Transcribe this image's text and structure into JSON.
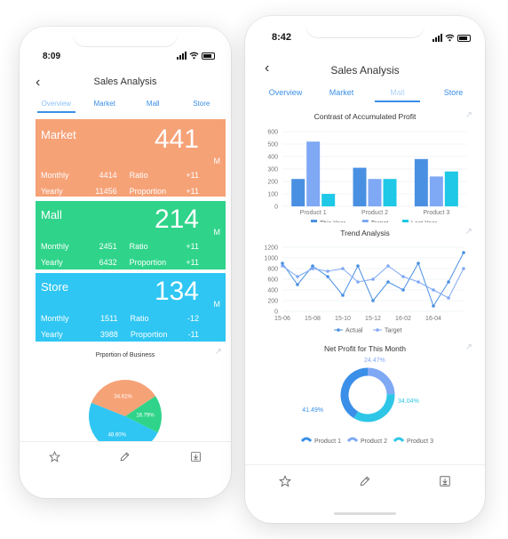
{
  "left": {
    "status": {
      "time": "8:09"
    },
    "title": "Sales Analysis",
    "tabs": [
      "Overview",
      "Market",
      "Mall",
      "Store"
    ],
    "active_tab": 0,
    "cards": [
      {
        "name": "Market",
        "value": "441",
        "unit": "M",
        "color": "#f6a277",
        "rows": [
          {
            "k1": "Monthly",
            "v1": "4414",
            "k2": "Ratio",
            "v2": "+11"
          },
          {
            "k1": "Yearly",
            "v1": "11456",
            "k2": "Proportion",
            "v2": "+11"
          }
        ]
      },
      {
        "name": "Mall",
        "value": "214",
        "unit": "M",
        "color": "#2fd48a",
        "rows": [
          {
            "k1": "Monthly",
            "v1": "2451",
            "k2": "Ratio",
            "v2": "+11"
          },
          {
            "k1": "Yearly",
            "v1": "6432",
            "k2": "Proportion",
            "v2": "+11"
          }
        ]
      },
      {
        "name": "Store",
        "value": "134",
        "unit": "M",
        "color": "#2fc6f3",
        "rows": [
          {
            "k1": "Monthly",
            "v1": "1511",
            "k2": "Ratio",
            "v2": "-12"
          },
          {
            "k1": "Yearly",
            "v1": "3988",
            "k2": "Proportion",
            "v2": "-11"
          }
        ]
      }
    ],
    "pie_title": "Prportion of Business"
  },
  "right": {
    "status": {
      "time": "8:42"
    },
    "title": "Sales Analysis",
    "tabs": [
      "Overview",
      "Market",
      "Mall",
      "Store"
    ],
    "active_tab": 2,
    "chart_titles": {
      "bar": "Contrast of Accumulated Profit",
      "line": "Trend Analysis",
      "donut": "Net Profit for This Month"
    }
  },
  "icons": [
    "back-chevron-icon",
    "expand-icon",
    "star-icon",
    "pen-icon",
    "download-icon",
    "signal-icon",
    "wifi-icon",
    "battery-icon"
  ],
  "chart_data": [
    {
      "type": "bar",
      "title": "Contrast of Accumulated Profit",
      "categories": [
        "Product 1",
        "Product 2",
        "Product 3"
      ],
      "series": [
        {
          "name": "This Year",
          "values": [
            220,
            310,
            380
          ],
          "color": "#4a90e2"
        },
        {
          "name": "Target",
          "values": [
            520,
            220,
            240
          ],
          "color": "#7fa8f5"
        },
        {
          "name": "Last Year",
          "values": [
            100,
            220,
            280
          ],
          "color": "#1ec8e6"
        }
      ],
      "ylim": [
        0,
        600
      ],
      "yticks": [
        0,
        100,
        200,
        300,
        400,
        500,
        600
      ],
      "grid": true,
      "legend": "bottom"
    },
    {
      "type": "line",
      "title": "Trend Analysis",
      "x": [
        "15-06",
        "15-07",
        "15-08",
        "15-09",
        "15-10",
        "15-11",
        "15-12",
        "16-01",
        "16-02",
        "16-03",
        "16-04",
        "16-05",
        "16-06"
      ],
      "xticks": [
        "15-06",
        "15-08",
        "15-10",
        "15-12",
        "16-02",
        "16-04"
      ],
      "series": [
        {
          "name": "Actual",
          "values": [
            900,
            500,
            850,
            650,
            300,
            850,
            200,
            550,
            400,
            900,
            100,
            550,
            1100
          ],
          "color": "#4a90e2"
        },
        {
          "name": "Target",
          "values": [
            850,
            650,
            800,
            750,
            800,
            550,
            600,
            850,
            650,
            550,
            400,
            250,
            800
          ],
          "color": "#7fa8f5"
        }
      ],
      "ylim": [
        0,
        1200
      ],
      "yticks": [
        0,
        200,
        400,
        600,
        800,
        1000,
        1200
      ],
      "grid": true,
      "legend": "bottom"
    },
    {
      "type": "pie",
      "title": "Net Profit for This Month",
      "labels": [
        "Product 1",
        "Product 2",
        "Product 3"
      ],
      "values": [
        41.49,
        24.47,
        34.04
      ],
      "value_labels": [
        "41.49%",
        "24.47%",
        "34.04%"
      ],
      "colors": [
        "#3a8fe8",
        "#7fa8f5",
        "#2ec6e6"
      ],
      "legend": "bottom"
    },
    {
      "type": "pie",
      "title": "Prportion of Business",
      "values": [
        34.61,
        16.79,
        48.6
      ],
      "value_labels": [
        "34.61%",
        "16.79%",
        "48.60%"
      ],
      "colors": [
        "#f6a277",
        "#2fd48a",
        "#2fc6f3"
      ]
    }
  ]
}
